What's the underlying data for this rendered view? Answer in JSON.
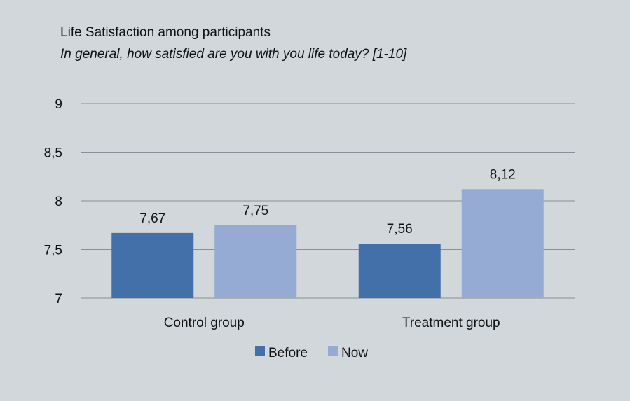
{
  "chart_data": {
    "type": "bar",
    "title": "Life Satisfaction among participants",
    "subtitle": "In general, how satisfied are you with you life today? [1-10]",
    "categories": [
      "Control group",
      "Treatment group"
    ],
    "series": [
      {
        "name": "Before",
        "values": [
          7.67,
          7.56
        ],
        "labels": [
          "7,67",
          "7,56"
        ],
        "color": "#4370a8"
      },
      {
        "name": "Now",
        "values": [
          7.75,
          8.12
        ],
        "labels": [
          "7,75",
          "8,12"
        ],
        "color": "#95abd4"
      }
    ],
    "ylim": [
      7,
      9
    ],
    "yticks": [
      7,
      7.5,
      8,
      8.5,
      9
    ],
    "ytick_labels": [
      "7",
      "7,5",
      "8",
      "8,5",
      "9"
    ],
    "grid": true,
    "gridline_color": "#8a8f95",
    "background_color": "#d2d7dc",
    "legend": "bottom-center"
  }
}
